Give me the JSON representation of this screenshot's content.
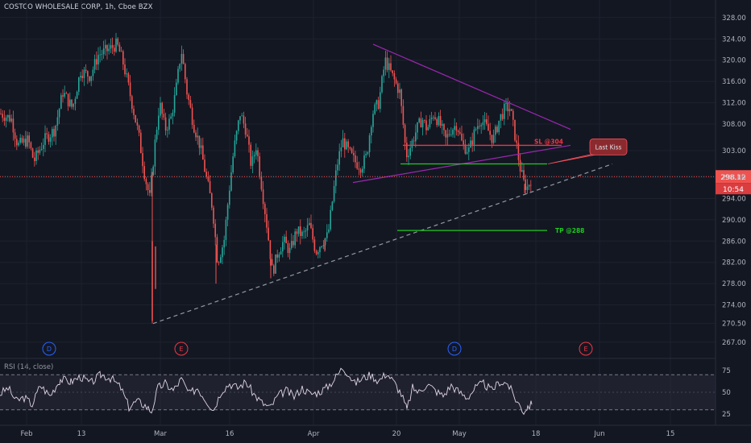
{
  "header": {
    "symbol_line": "COSTCO WHOLESALE CORP, 1h, Cboe BZX"
  },
  "rsi": {
    "label": "RSI (14, close)"
  },
  "chart_data": [
    {
      "type": "candlestick",
      "title": "COSTCO WHOLESALE CORP, 1h, Cboe BZX",
      "y_axis": {
        "ticks": [
          "328.00",
          "324.00",
          "320.00",
          "316.00",
          "312.00",
          "308.00",
          "303.00",
          "298.00",
          "294.00",
          "290.00",
          "286.00",
          "282.00",
          "278.00",
          "274.00",
          "270.50",
          "267.00"
        ],
        "ylim": [
          265,
          329.5
        ],
        "position": "right"
      },
      "x_axis": {
        "ticks": [
          "Feb",
          "13",
          "Mar",
          "16",
          "Apr",
          "20",
          "May",
          "18",
          "Jun",
          "15"
        ]
      },
      "last_price": {
        "value": "298.12",
        "time_to_close": "10:54"
      },
      "price_path": [
        {
          "x": 0,
          "p": 310
        },
        {
          "x": 14,
          "p": 309
        },
        {
          "x": 22,
          "p": 304
        },
        {
          "x": 35,
          "p": 305
        },
        {
          "x": 42,
          "p": 301
        },
        {
          "x": 55,
          "p": 305
        },
        {
          "x": 68,
          "p": 307
        },
        {
          "x": 78,
          "p": 314
        },
        {
          "x": 90,
          "p": 311
        },
        {
          "x": 100,
          "p": 318
        },
        {
          "x": 112,
          "p": 317
        },
        {
          "x": 122,
          "p": 321
        },
        {
          "x": 135,
          "p": 322
        },
        {
          "x": 145,
          "p": 323
        },
        {
          "x": 152,
          "p": 320
        },
        {
          "x": 158,
          "p": 316
        },
        {
          "x": 165,
          "p": 311
        },
        {
          "x": 172,
          "p": 306
        },
        {
          "x": 180,
          "p": 298
        },
        {
          "x": 186,
          "p": 294
        },
        {
          "x": 192,
          "p": 304
        },
        {
          "x": 198,
          "p": 312
        },
        {
          "x": 205,
          "p": 307
        },
        {
          "x": 212,
          "p": 309
        },
        {
          "x": 218,
          "p": 314
        },
        {
          "x": 225,
          "p": 322
        },
        {
          "x": 232,
          "p": 314
        },
        {
          "x": 240,
          "p": 308
        },
        {
          "x": 248,
          "p": 304
        },
        {
          "x": 256,
          "p": 298
        },
        {
          "x": 264,
          "p": 292
        },
        {
          "x": 270,
          "p": 282
        },
        {
          "x": 278,
          "p": 286
        },
        {
          "x": 284,
          "p": 295
        },
        {
          "x": 290,
          "p": 303
        },
        {
          "x": 298,
          "p": 310
        },
        {
          "x": 305,
          "p": 307
        },
        {
          "x": 312,
          "p": 300
        },
        {
          "x": 318,
          "p": 304
        },
        {
          "x": 325,
          "p": 296
        },
        {
          "x": 332,
          "p": 288
        },
        {
          "x": 338,
          "p": 280
        },
        {
          "x": 345,
          "p": 284
        },
        {
          "x": 352,
          "p": 286
        },
        {
          "x": 360,
          "p": 284
        },
        {
          "x": 368,
          "p": 288
        },
        {
          "x": 376,
          "p": 287
        },
        {
          "x": 384,
          "p": 289
        },
        {
          "x": 392,
          "p": 284
        },
        {
          "x": 400,
          "p": 286
        },
        {
          "x": 407,
          "p": 287
        },
        {
          "x": 412,
          "p": 293
        },
        {
          "x": 418,
          "p": 300
        },
        {
          "x": 425,
          "p": 305
        },
        {
          "x": 432,
          "p": 303
        },
        {
          "x": 440,
          "p": 301
        },
        {
          "x": 448,
          "p": 300
        },
        {
          "x": 455,
          "p": 302
        },
        {
          "x": 462,
          "p": 310
        },
        {
          "x": 470,
          "p": 312
        },
        {
          "x": 478,
          "p": 320
        },
        {
          "x": 484,
          "p": 318
        },
        {
          "x": 490,
          "p": 316
        },
        {
          "x": 496,
          "p": 314
        },
        {
          "x": 501,
          "p": 307
        },
        {
          "x": 504,
          "p": 302
        },
        {
          "x": 510,
          "p": 304
        },
        {
          "x": 517,
          "p": 307
        },
        {
          "x": 524,
          "p": 309
        },
        {
          "x": 530,
          "p": 307
        },
        {
          "x": 538,
          "p": 310
        },
        {
          "x": 546,
          "p": 308
        },
        {
          "x": 553,
          "p": 305
        },
        {
          "x": 560,
          "p": 307
        },
        {
          "x": 567,
          "p": 308
        },
        {
          "x": 574,
          "p": 304
        },
        {
          "x": 582,
          "p": 303
        },
        {
          "x": 590,
          "p": 307
        },
        {
          "x": 597,
          "p": 309
        },
        {
          "x": 605,
          "p": 307
        },
        {
          "x": 612,
          "p": 305
        },
        {
          "x": 620,
          "p": 309
        },
        {
          "x": 627,
          "p": 311
        },
        {
          "x": 633,
          "p": 311
        },
        {
          "x": 640,
          "p": 305
        },
        {
          "x": 645,
          "p": 300
        },
        {
          "x": 650,
          "p": 297
        },
        {
          "x": 654,
          "p": 296
        },
        {
          "x": 660,
          "p": 298
        }
      ],
      "price_low_spikes": [
        {
          "x": 189,
          "p": 270.5
        },
        {
          "x": 268,
          "p": 278
        },
        {
          "x": 336,
          "p": 279
        },
        {
          "x": 403,
          "p": 284
        },
        {
          "x": 651,
          "p": 295
        }
      ],
      "annotations": [
        {
          "kind": "trendline",
          "style": "dashed",
          "color": "#9598a1",
          "from": {
            "x": 190,
            "p": 270.5
          },
          "to": {
            "x": 760,
            "p": 300.5
          }
        },
        {
          "kind": "trendline",
          "style": "solid",
          "color": "#9c27b0",
          "from": {
            "x": 463,
            "p": 323
          },
          "to": {
            "x": 708,
            "p": 307
          }
        },
        {
          "kind": "trendline",
          "style": "solid",
          "color": "#9c27b0",
          "from": {
            "x": 438,
            "p": 297
          },
          "to": {
            "x": 708,
            "p": 304
          }
        },
        {
          "kind": "level",
          "color": "#f23645",
          "label": "SL @304",
          "label_color": "#f23645",
          "p": 304,
          "x1": 500,
          "x2": 697
        },
        {
          "kind": "level",
          "color": "#22c722",
          "label": "",
          "p": 300.5,
          "x1": 497,
          "x2": 679
        },
        {
          "kind": "level",
          "color": "#22c722",
          "label": "TP @288",
          "label_color": "#22c722",
          "p": 288,
          "x1": 493,
          "x2": 679
        },
        {
          "kind": "callout",
          "text": "Last Kiss",
          "fill": "#8b2a2e",
          "stroke": "#f7525f",
          "p": 303.7,
          "x": 755
        }
      ],
      "event_markers": [
        {
          "x": 61,
          "letter": "D",
          "color": "#2962ff"
        },
        {
          "x": 225,
          "letter": "E",
          "color": "#f23645"
        },
        {
          "x": 564,
          "letter": "D",
          "color": "#2962ff"
        },
        {
          "x": 727,
          "letter": "E",
          "color": "#f23645"
        }
      ]
    },
    {
      "type": "line",
      "title": "RSI (14, close)",
      "y_axis": {
        "ticks": [
          "75",
          "50",
          "25"
        ],
        "ylim": [
          15,
          85
        ],
        "band": [
          30,
          70
        ]
      },
      "series": [
        {
          "values": [
            {
              "x": 0,
              "v": 48
            },
            {
              "x": 10,
              "v": 55
            },
            {
              "x": 20,
              "v": 40
            },
            {
              "x": 30,
              "v": 44
            },
            {
              "x": 40,
              "v": 36
            },
            {
              "x": 50,
              "v": 58
            },
            {
              "x": 62,
              "v": 46
            },
            {
              "x": 75,
              "v": 65
            },
            {
              "x": 88,
              "v": 62
            },
            {
              "x": 100,
              "v": 68
            },
            {
              "x": 112,
              "v": 60
            },
            {
              "x": 125,
              "v": 70
            },
            {
              "x": 138,
              "v": 66
            },
            {
              "x": 150,
              "v": 55
            },
            {
              "x": 160,
              "v": 33
            },
            {
              "x": 170,
              "v": 40
            },
            {
              "x": 180,
              "v": 35
            },
            {
              "x": 188,
              "v": 28
            },
            {
              "x": 196,
              "v": 55
            },
            {
              "x": 205,
              "v": 60
            },
            {
              "x": 215,
              "v": 52
            },
            {
              "x": 225,
              "v": 65
            },
            {
              "x": 235,
              "v": 48
            },
            {
              "x": 245,
              "v": 55
            },
            {
              "x": 255,
              "v": 42
            },
            {
              "x": 265,
              "v": 30
            },
            {
              "x": 275,
              "v": 52
            },
            {
              "x": 285,
              "v": 60
            },
            {
              "x": 295,
              "v": 55
            },
            {
              "x": 305,
              "v": 62
            },
            {
              "x": 315,
              "v": 48
            },
            {
              "x": 325,
              "v": 38
            },
            {
              "x": 335,
              "v": 32
            },
            {
              "x": 345,
              "v": 46
            },
            {
              "x": 355,
              "v": 52
            },
            {
              "x": 365,
              "v": 45
            },
            {
              "x": 375,
              "v": 55
            },
            {
              "x": 385,
              "v": 48
            },
            {
              "x": 395,
              "v": 50
            },
            {
              "x": 405,
              "v": 55
            },
            {
              "x": 415,
              "v": 65
            },
            {
              "x": 425,
              "v": 78
            },
            {
              "x": 432,
              "v": 72
            },
            {
              "x": 440,
              "v": 60
            },
            {
              "x": 450,
              "v": 66
            },
            {
              "x": 460,
              "v": 70
            },
            {
              "x": 470,
              "v": 63
            },
            {
              "x": 480,
              "v": 72
            },
            {
              "x": 490,
              "v": 60
            },
            {
              "x": 498,
              "v": 48
            },
            {
              "x": 505,
              "v": 30
            },
            {
              "x": 512,
              "v": 55
            },
            {
              "x": 520,
              "v": 50
            },
            {
              "x": 530,
              "v": 60
            },
            {
              "x": 540,
              "v": 52
            },
            {
              "x": 550,
              "v": 46
            },
            {
              "x": 560,
              "v": 58
            },
            {
              "x": 570,
              "v": 50
            },
            {
              "x": 580,
              "v": 44
            },
            {
              "x": 590,
              "v": 55
            },
            {
              "x": 600,
              "v": 60
            },
            {
              "x": 610,
              "v": 52
            },
            {
              "x": 620,
              "v": 62
            },
            {
              "x": 630,
              "v": 60
            },
            {
              "x": 640,
              "v": 42
            },
            {
              "x": 650,
              "v": 28
            },
            {
              "x": 655,
              "v": 34
            },
            {
              "x": 660,
              "v": 36
            }
          ]
        }
      ]
    }
  ]
}
